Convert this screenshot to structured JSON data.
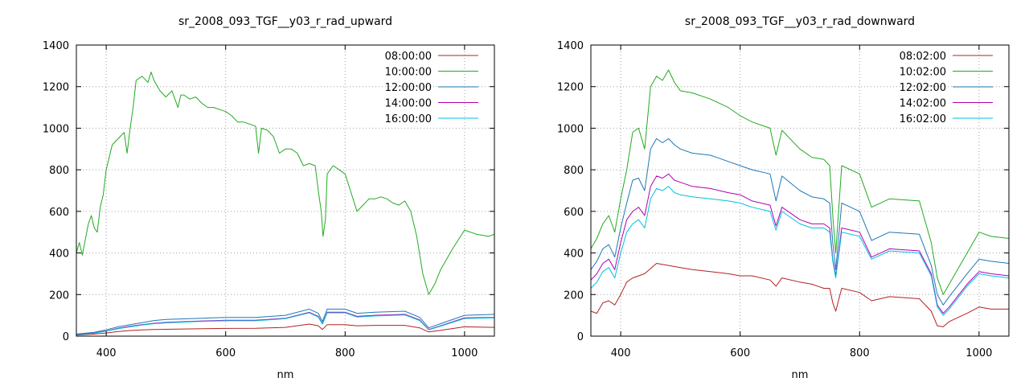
{
  "chart_data": [
    {
      "type": "line",
      "title": "sr_2008_093_TGF__y03_r_rad_upward",
      "xlabel": "nm",
      "ylabel": "",
      "xlim": [
        350,
        1050
      ],
      "ylim": [
        0,
        1400
      ],
      "xticks": [
        400,
        600,
        800,
        1000
      ],
      "yticks": [
        0,
        200,
        400,
        600,
        800,
        1000,
        1200,
        1400
      ],
      "grid": true,
      "legend": "top-right",
      "series": [
        {
          "name": "08:00:00",
          "color": "#b22222",
          "x": [
            350,
            380,
            400,
            420,
            440,
            460,
            480,
            500,
            550,
            600,
            650,
            700,
            740,
            755,
            762,
            770,
            800,
            820,
            850,
            900,
            925,
            940,
            960,
            1000,
            1050
          ],
          "y": [
            5,
            10,
            15,
            22,
            27,
            30,
            32,
            33,
            35,
            37,
            38,
            42,
            58,
            50,
            32,
            55,
            55,
            50,
            52,
            52,
            40,
            20,
            28,
            45,
            42
          ]
        },
        {
          "name": "10:00:00",
          "color": "#22aa22",
          "x": [
            350,
            355,
            360,
            370,
            375,
            380,
            385,
            390,
            395,
            400,
            410,
            420,
            430,
            435,
            440,
            445,
            450,
            460,
            470,
            475,
            480,
            490,
            500,
            510,
            520,
            525,
            530,
            540,
            550,
            560,
            570,
            580,
            590,
            600,
            610,
            620,
            630,
            640,
            650,
            655,
            660,
            670,
            680,
            690,
            700,
            710,
            720,
            730,
            740,
            750,
            755,
            760,
            763,
            767,
            770,
            780,
            790,
            800,
            810,
            820,
            830,
            840,
            850,
            860,
            870,
            880,
            890,
            900,
            910,
            920,
            930,
            940,
            950,
            960,
            980,
            1000,
            1020,
            1040,
            1050
          ],
          "y": [
            400,
            450,
            390,
            540,
            580,
            520,
            500,
            620,
            680,
            800,
            920,
            950,
            980,
            880,
            1000,
            1100,
            1230,
            1250,
            1220,
            1270,
            1230,
            1180,
            1150,
            1180,
            1100,
            1160,
            1160,
            1140,
            1150,
            1120,
            1100,
            1100,
            1090,
            1080,
            1060,
            1030,
            1030,
            1020,
            1010,
            880,
            1000,
            990,
            960,
            880,
            900,
            900,
            880,
            820,
            830,
            820,
            700,
            600,
            480,
            560,
            780,
            820,
            800,
            780,
            690,
            600,
            630,
            660,
            660,
            670,
            660,
            640,
            630,
            650,
            600,
            480,
            300,
            200,
            250,
            320,
            420,
            510,
            490,
            480,
            490
          ]
        },
        {
          "name": "12:00:00",
          "color": "#1e78b4",
          "x": [
            350,
            380,
            400,
            420,
            440,
            460,
            480,
            500,
            550,
            600,
            650,
            700,
            740,
            755,
            762,
            770,
            800,
            820,
            850,
            900,
            925,
            940,
            960,
            1000,
            1050
          ],
          "y": [
            10,
            18,
            30,
            45,
            55,
            65,
            75,
            80,
            85,
            90,
            90,
            100,
            130,
            110,
            70,
            130,
            130,
            110,
            115,
            120,
            90,
            40,
            60,
            100,
            105
          ]
        },
        {
          "name": "14:00:00",
          "color": "#b000b0",
          "x": [
            350,
            380,
            400,
            420,
            440,
            460,
            480,
            500,
            550,
            600,
            650,
            700,
            740,
            755,
            762,
            770,
            800,
            820,
            850,
            900,
            925,
            940,
            960,
            1000,
            1050
          ],
          "y": [
            8,
            15,
            25,
            38,
            47,
            55,
            62,
            66,
            72,
            76,
            76,
            86,
            115,
            95,
            60,
            115,
            115,
            95,
            100,
            105,
            78,
            32,
            50,
            88,
            90
          ]
        },
        {
          "name": "16:00:00",
          "color": "#00c0e0",
          "x": [
            350,
            380,
            400,
            420,
            440,
            460,
            480,
            500,
            550,
            600,
            650,
            700,
            740,
            755,
            762,
            770,
            800,
            820,
            850,
            900,
            925,
            940,
            960,
            1000,
            1050
          ],
          "y": [
            7,
            14,
            24,
            36,
            45,
            53,
            60,
            64,
            70,
            74,
            74,
            84,
            112,
            92,
            58,
            112,
            112,
            92,
            97,
            102,
            75,
            30,
            48,
            85,
            88
          ]
        }
      ]
    },
    {
      "type": "line",
      "title": "sr_2008_093_TGF__y03_r_rad_downward",
      "xlabel": "nm",
      "ylabel": "",
      "xlim": [
        350,
        1050
      ],
      "ylim": [
        0,
        1400
      ],
      "xticks": [
        400,
        600,
        800,
        1000
      ],
      "yticks": [
        0,
        200,
        400,
        600,
        800,
        1000,
        1200,
        1400
      ],
      "grid": true,
      "legend": "top-right",
      "series": [
        {
          "name": "08:02:00",
          "color": "#b22222",
          "x": [
            350,
            360,
            370,
            380,
            390,
            400,
            410,
            420,
            440,
            460,
            480,
            500,
            520,
            550,
            580,
            600,
            620,
            650,
            660,
            670,
            700,
            720,
            740,
            750,
            755,
            760,
            770,
            800,
            820,
            850,
            900,
            920,
            930,
            940,
            950,
            980,
            1000,
            1020,
            1050
          ],
          "y": [
            120,
            110,
            160,
            170,
            150,
            200,
            260,
            280,
            300,
            350,
            340,
            330,
            320,
            310,
            300,
            290,
            290,
            270,
            240,
            280,
            260,
            250,
            230,
            230,
            160,
            120,
            230,
            210,
            170,
            190,
            180,
            120,
            50,
            45,
            70,
            110,
            140,
            130,
            130
          ]
        },
        {
          "name": "10:02:00",
          "color": "#22aa22",
          "x": [
            350,
            360,
            370,
            380,
            390,
            400,
            410,
            420,
            430,
            440,
            450,
            460,
            470,
            480,
            490,
            500,
            520,
            550,
            580,
            600,
            620,
            650,
            660,
            670,
            700,
            720,
            740,
            750,
            755,
            760,
            770,
            800,
            820,
            850,
            900,
            920,
            930,
            940,
            950,
            980,
            1000,
            1020,
            1050
          ],
          "y": [
            420,
            470,
            540,
            580,
            500,
            660,
            800,
            980,
            1000,
            900,
            1200,
            1250,
            1230,
            1280,
            1220,
            1180,
            1170,
            1140,
            1100,
            1060,
            1030,
            1000,
            870,
            990,
            900,
            860,
            850,
            820,
            580,
            400,
            820,
            780,
            620,
            660,
            650,
            450,
            280,
            200,
            250,
            400,
            500,
            480,
            470
          ]
        },
        {
          "name": "12:02:00",
          "color": "#1e78b4",
          "x": [
            350,
            360,
            370,
            380,
            390,
            400,
            410,
            420,
            430,
            440,
            450,
            460,
            470,
            480,
            490,
            500,
            520,
            550,
            580,
            600,
            620,
            650,
            660,
            670,
            700,
            720,
            740,
            750,
            755,
            760,
            770,
            800,
            820,
            850,
            900,
            920,
            930,
            940,
            950,
            980,
            1000,
            1020,
            1050
          ],
          "y": [
            320,
            360,
            420,
            440,
            380,
            520,
            640,
            750,
            760,
            700,
            900,
            950,
            930,
            950,
            920,
            900,
            880,
            870,
            840,
            820,
            800,
            780,
            650,
            770,
            700,
            670,
            660,
            640,
            450,
            320,
            640,
            600,
            460,
            500,
            490,
            340,
            200,
            150,
            190,
            300,
            370,
            360,
            350
          ]
        },
        {
          "name": "14:02:00",
          "color": "#b000b0",
          "x": [
            350,
            360,
            370,
            380,
            390,
            400,
            410,
            420,
            430,
            440,
            450,
            460,
            470,
            480,
            490,
            500,
            520,
            550,
            580,
            600,
            620,
            650,
            660,
            670,
            700,
            720,
            740,
            750,
            755,
            760,
            770,
            800,
            820,
            850,
            900,
            920,
            930,
            940,
            950,
            980,
            1000,
            1020,
            1050
          ],
          "y": [
            270,
            300,
            350,
            370,
            320,
            450,
            560,
            600,
            620,
            580,
            720,
            770,
            760,
            780,
            750,
            740,
            720,
            710,
            690,
            680,
            650,
            630,
            530,
            620,
            560,
            540,
            540,
            520,
            370,
            290,
            520,
            500,
            380,
            420,
            410,
            300,
            150,
            110,
            140,
            250,
            310,
            300,
            290
          ]
        },
        {
          "name": "16:02:00",
          "color": "#00c0e0",
          "x": [
            350,
            360,
            370,
            380,
            390,
            400,
            410,
            420,
            430,
            440,
            450,
            460,
            470,
            480,
            490,
            500,
            520,
            550,
            580,
            600,
            620,
            650,
            660,
            670,
            700,
            720,
            740,
            750,
            755,
            760,
            770,
            800,
            820,
            850,
            900,
            920,
            930,
            940,
            950,
            980,
            1000,
            1020,
            1050
          ],
          "y": [
            230,
            260,
            310,
            330,
            280,
            400,
            500,
            540,
            560,
            520,
            660,
            710,
            700,
            720,
            690,
            680,
            670,
            660,
            650,
            640,
            620,
            600,
            510,
            600,
            540,
            520,
            520,
            500,
            360,
            280,
            500,
            480,
            370,
            410,
            400,
            290,
            140,
            100,
            130,
            240,
            300,
            290,
            280
          ]
        }
      ]
    }
  ]
}
